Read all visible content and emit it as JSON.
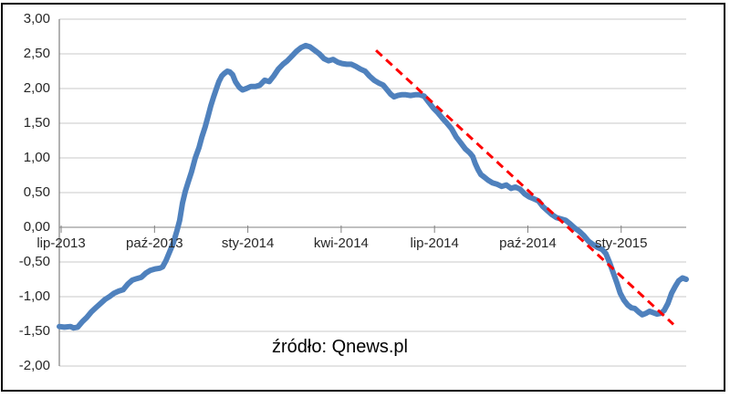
{
  "chart_data": {
    "type": "line",
    "title": "",
    "source_label": "źródło: Qnews.pl",
    "grid": true,
    "legend": "none",
    "ylim": [
      -2.0,
      3.0
    ],
    "y_tick_step": 0.5,
    "y_tick_labels": [
      "3,00",
      "2,50",
      "2,00",
      "1,50",
      "1,00",
      "0,50",
      "0,00",
      "-0,50",
      "-1,00",
      "-1,50",
      "-2,00"
    ],
    "x_tick_labels": [
      "lip-2013",
      "paź-2013",
      "sty-2014",
      "kwi-2014",
      "lip-2014",
      "paź-2014",
      "sty-2015"
    ],
    "x_tick_positions_months": [
      0,
      3,
      6,
      9,
      12,
      15,
      18
    ],
    "x_range_months": [
      -0.06,
      20.09
    ],
    "colors": {
      "series": "#4F81BD",
      "trend": "#FF0000",
      "grid": "#C9C9C9",
      "axis": "#808080",
      "text": "#262626",
      "border": "#000000"
    },
    "series": [
      {
        "color": "#4F81BD",
        "width": 6,
        "points": [
          [
            -0.06,
            -1.43
          ],
          [
            0.1,
            -1.44
          ],
          [
            0.3,
            -1.43
          ],
          [
            0.4,
            -1.45
          ],
          [
            0.53,
            -1.44
          ],
          [
            0.68,
            -1.36
          ],
          [
            0.82,
            -1.3
          ],
          [
            0.97,
            -1.22
          ],
          [
            1.11,
            -1.16
          ],
          [
            1.26,
            -1.1
          ],
          [
            1.41,
            -1.04
          ],
          [
            1.55,
            -1.0
          ],
          [
            1.7,
            -0.95
          ],
          [
            1.85,
            -0.92
          ],
          [
            1.99,
            -0.9
          ],
          [
            2.14,
            -0.82
          ],
          [
            2.29,
            -0.76
          ],
          [
            2.43,
            -0.74
          ],
          [
            2.58,
            -0.72
          ],
          [
            2.72,
            -0.66
          ],
          [
            2.87,
            -0.62
          ],
          [
            3.02,
            -0.6
          ],
          [
            3.17,
            -0.59
          ],
          [
            3.26,
            -0.57
          ],
          [
            3.37,
            -0.48
          ],
          [
            3.49,
            -0.35
          ],
          [
            3.61,
            -0.22
          ],
          [
            3.72,
            -0.05
          ],
          [
            3.81,
            0.1
          ],
          [
            3.9,
            0.35
          ],
          [
            3.99,
            0.52
          ],
          [
            4.08,
            0.65
          ],
          [
            4.19,
            0.8
          ],
          [
            4.31,
            1.0
          ],
          [
            4.43,
            1.15
          ],
          [
            4.52,
            1.3
          ],
          [
            4.63,
            1.45
          ],
          [
            4.72,
            1.6
          ],
          [
            4.81,
            1.75
          ],
          [
            4.9,
            1.88
          ],
          [
            4.99,
            2.0
          ],
          [
            5.07,
            2.1
          ],
          [
            5.16,
            2.18
          ],
          [
            5.25,
            2.22
          ],
          [
            5.34,
            2.25
          ],
          [
            5.42,
            2.24
          ],
          [
            5.51,
            2.2
          ],
          [
            5.6,
            2.1
          ],
          [
            5.72,
            2.02
          ],
          [
            5.83,
            1.98
          ],
          [
            5.95,
            2.0
          ],
          [
            6.1,
            2.03
          ],
          [
            6.25,
            2.03
          ],
          [
            6.39,
            2.05
          ],
          [
            6.54,
            2.12
          ],
          [
            6.69,
            2.1
          ],
          [
            6.83,
            2.18
          ],
          [
            6.98,
            2.28
          ],
          [
            7.13,
            2.35
          ],
          [
            7.27,
            2.4
          ],
          [
            7.42,
            2.47
          ],
          [
            7.57,
            2.54
          ],
          [
            7.71,
            2.59
          ],
          [
            7.86,
            2.62
          ],
          [
            8.0,
            2.6
          ],
          [
            8.15,
            2.55
          ],
          [
            8.3,
            2.5
          ],
          [
            8.45,
            2.43
          ],
          [
            8.59,
            2.4
          ],
          [
            8.74,
            2.42
          ],
          [
            8.89,
            2.38
          ],
          [
            9.03,
            2.36
          ],
          [
            9.18,
            2.35
          ],
          [
            9.33,
            2.35
          ],
          [
            9.47,
            2.32
          ],
          [
            9.62,
            2.28
          ],
          [
            9.77,
            2.25
          ],
          [
            9.91,
            2.18
          ],
          [
            10.06,
            2.12
          ],
          [
            10.21,
            2.08
          ],
          [
            10.35,
            2.05
          ],
          [
            10.5,
            1.97
          ],
          [
            10.59,
            1.92
          ],
          [
            10.7,
            1.88
          ],
          [
            10.82,
            1.9
          ],
          [
            10.94,
            1.91
          ],
          [
            11.08,
            1.91
          ],
          [
            11.23,
            1.9
          ],
          [
            11.38,
            1.91
          ],
          [
            11.52,
            1.91
          ],
          [
            11.67,
            1.89
          ],
          [
            11.82,
            1.8
          ],
          [
            11.96,
            1.72
          ],
          [
            12.11,
            1.65
          ],
          [
            12.26,
            1.57
          ],
          [
            12.4,
            1.5
          ],
          [
            12.55,
            1.42
          ],
          [
            12.7,
            1.3
          ],
          [
            12.84,
            1.22
          ],
          [
            12.99,
            1.13
          ],
          [
            13.14,
            1.07
          ],
          [
            13.23,
            1.02
          ],
          [
            13.31,
            0.92
          ],
          [
            13.4,
            0.83
          ],
          [
            13.49,
            0.76
          ],
          [
            13.61,
            0.72
          ],
          [
            13.72,
            0.68
          ],
          [
            13.87,
            0.64
          ],
          [
            14.02,
            0.62
          ],
          [
            14.16,
            0.59
          ],
          [
            14.31,
            0.61
          ],
          [
            14.46,
            0.56
          ],
          [
            14.6,
            0.58
          ],
          [
            14.75,
            0.55
          ],
          [
            14.9,
            0.48
          ],
          [
            15.04,
            0.44
          ],
          [
            15.19,
            0.41
          ],
          [
            15.34,
            0.38
          ],
          [
            15.48,
            0.3
          ],
          [
            15.63,
            0.24
          ],
          [
            15.78,
            0.18
          ],
          [
            15.92,
            0.14
          ],
          [
            16.07,
            0.12
          ],
          [
            16.22,
            0.1
          ],
          [
            16.36,
            0.05
          ],
          [
            16.51,
            -0.01
          ],
          [
            16.66,
            -0.06
          ],
          [
            16.8,
            -0.12
          ],
          [
            16.95,
            -0.2
          ],
          [
            17.1,
            -0.25
          ],
          [
            17.24,
            -0.29
          ],
          [
            17.39,
            -0.32
          ],
          [
            17.51,
            -0.38
          ],
          [
            17.62,
            -0.5
          ],
          [
            17.74,
            -0.65
          ],
          [
            17.86,
            -0.8
          ],
          [
            17.97,
            -0.95
          ],
          [
            18.09,
            -1.05
          ],
          [
            18.21,
            -1.12
          ],
          [
            18.33,
            -1.16
          ],
          [
            18.44,
            -1.17
          ],
          [
            18.56,
            -1.22
          ],
          [
            18.68,
            -1.26
          ],
          [
            18.8,
            -1.24
          ],
          [
            18.91,
            -1.21
          ],
          [
            19.03,
            -1.23
          ],
          [
            19.15,
            -1.25
          ],
          [
            19.27,
            -1.24
          ],
          [
            19.38,
            -1.2
          ],
          [
            19.5,
            -1.1
          ],
          [
            19.62,
            -0.95
          ],
          [
            19.74,
            -0.85
          ],
          [
            19.85,
            -0.77
          ],
          [
            19.97,
            -0.73
          ],
          [
            20.09,
            -0.75
          ]
        ]
      }
    ],
    "trend_line": {
      "color": "#FF0000",
      "style": "dashed",
      "width": 3,
      "points": [
        [
          10.12,
          2.55
        ],
        [
          19.68,
          -1.4
        ]
      ]
    }
  }
}
